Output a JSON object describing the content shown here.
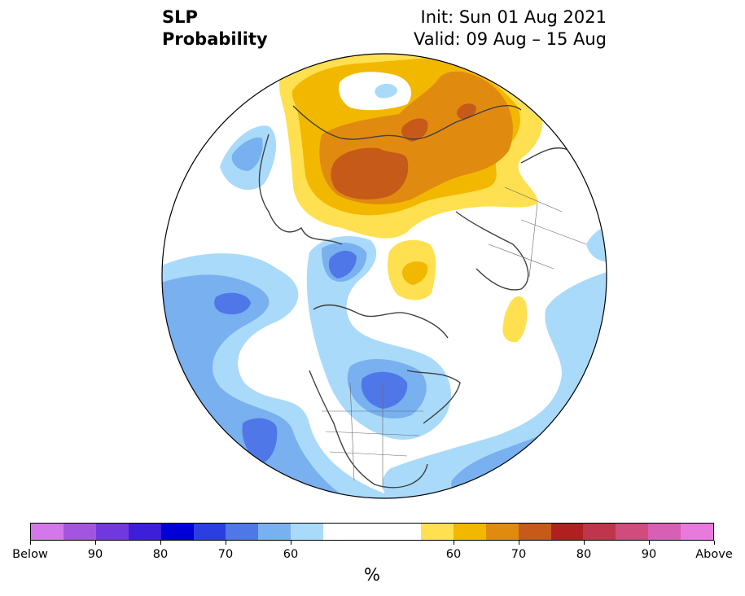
{
  "title": {
    "variable": "SLP",
    "product": "Probability",
    "init": "Init: Sun 01 Aug 2021",
    "valid": "Valid: 09 Aug – 15 Aug"
  },
  "colors": {
    "bin": [
      "#d378e8",
      "#a355e0",
      "#7038de",
      "#3d1ed9",
      "#0000d6",
      "#2b3fe0",
      "#4f77e8",
      "#79b0ef",
      "#aadafa",
      "#ffffff",
      "#ffffff",
      "#ffffff",
      "#ffe050",
      "#f2b800",
      "#e08b10",
      "#c65a18",
      "#b02020",
      "#c0344c",
      "#d04c7c",
      "#d860b4",
      "#e87ade"
    ],
    "ocean": "#ffffff",
    "coast": "#404040"
  },
  "colorbar": {
    "labels": [
      "Below",
      "90",
      "80",
      "70",
      "60",
      "60",
      "70",
      "80",
      "90",
      "Above"
    ],
    "unit": "%"
  }
}
